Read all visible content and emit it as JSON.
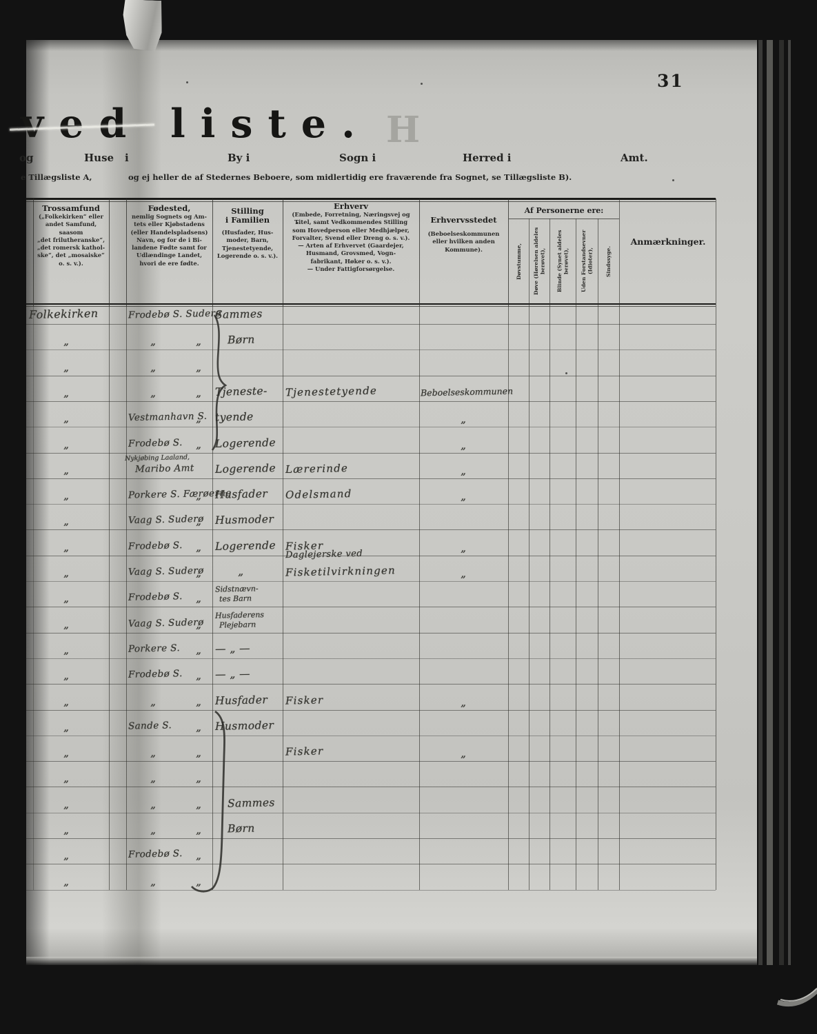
{
  "page": {
    "number": "31",
    "title": "ved liste.",
    "ghost_letter": "H"
  },
  "fields": {
    "og": "og",
    "huse": "Huse",
    "i": "i",
    "by": "By i",
    "sogn": "Sogn i",
    "herred": "Herred i",
    "amt": "Amt."
  },
  "note": {
    "left": "e Tillægsliste A,",
    "right": "og ej heller de af Stedernes Beboere, som midlertidig ere fraværende fra Sognet, se Tillægsliste B)."
  },
  "table": {
    "trossamfund": {
      "title": "Trossamfund",
      "lines": [
        "(„Folkekirken“ eller",
        "andet Samfund, saasom",
        "„det frilutheranske“,",
        "„det romersk kathol-",
        "ske“, det „mosaiske“",
        "o. s. v.)."
      ]
    },
    "foedested": {
      "title": "Fødested,",
      "lines": [
        "nemlig Sognets og Am-",
        "tets eller Kjøbstadens",
        "(eller Handelspladsens)",
        "Navn, og for de i Bi-",
        "landene Fødte samt for",
        "Udlændinge Landet,",
        "hvori de ere fødte."
      ]
    },
    "stilling": {
      "title": "Stilling",
      "title2": "i Familien",
      "lines": [
        "(Husfader, Hus-",
        "moder, Barn,",
        "Tjenestetyende,",
        "Logerende o. s. v.)."
      ]
    },
    "erhverv": {
      "title": "Erhverv",
      "lines": [
        "(Embede, Forretning, Næringsvej og",
        "Titel, samt Vedkommendes Stilling",
        "som Hovedperson eller Medhjælper,",
        "Forvalter, Svend eller Dreng o. s. v.).",
        "— Arten af Erhvervet (Gaardejer,",
        "Husmand, Grovsmed, Vogn-",
        "fabrikant, Høker o. s. v.).",
        "— Under Fattigforsørgelse."
      ]
    },
    "erhvervsstedet": {
      "title": "Erhvervsstedet",
      "lines": [
        "(Beboelseskommunen",
        "eller hvilken anden",
        "Kommune)."
      ]
    },
    "af_personerne": {
      "title": "Af Personerne ere:",
      "subcols": [
        "Døvstumme,",
        "Døve (Hørelsen aldeles berøvet),",
        "Blinde (Synet aldeles berøvet),",
        "Uden Forstandsevner (Idioter),",
        "Sindssyge."
      ]
    },
    "anmaerkninger": {
      "title": "Anmærkninger."
    }
  },
  "rows": [
    {
      "t": "Folkekirken",
      "f": "Frodebø S. Suderø",
      "s": "Sammes"
    },
    {
      "t": "„",
      "f": "„",
      "fd": "„",
      "s": "Børn",
      "s_center": true
    },
    {
      "t": "„",
      "f": "„",
      "fd": "„"
    },
    {
      "t": "„",
      "f": "„",
      "fd": "„",
      "s": "Tjeneste-",
      "e": "Tjenestetyende",
      "es": "Beboelseskommunen"
    },
    {
      "t": "„",
      "f": "Vestmanhavn S.",
      "fd": "„",
      "s": "tyende",
      "es": "„"
    },
    {
      "t": "„",
      "f": "Frodebø S.",
      "fd": "„",
      "s": "Logerende",
      "es": "„"
    },
    {
      "t": "„",
      "fsmall": "Nykjøbing Laaland,",
      "f": "Maribo Amt",
      "s": "Logerende",
      "e": "Lærerinde",
      "es": "„"
    },
    {
      "t": "„",
      "f": "Porkere S. Færøerne",
      "fd": "„",
      "s": "Husfader",
      "e": "Odelsmand",
      "es": "„"
    },
    {
      "t": "„",
      "f": "Vaag S. Suderø",
      "fd": "„",
      "s": "Husmoder"
    },
    {
      "t": "„",
      "f": "Frodebø S.",
      "fd": "„",
      "s": "Logerende",
      "e": "Fisker",
      "e2": "Daglejerske ved",
      "es": "„"
    },
    {
      "t": "„",
      "f": "Vaag S. Suderø",
      "fd": "„",
      "s": "„",
      "e": "Fisketilvirkningen",
      "es": "„"
    },
    {
      "t": "„",
      "f": "Frodebø S.",
      "fd": "„",
      "s2": [
        "Sidstnævn-",
        "tes Barn"
      ]
    },
    {
      "t": "„",
      "f": "Vaag S. Suderø",
      "fd": "„",
      "s2": [
        "Husfaderens",
        "Plejebarn"
      ]
    },
    {
      "t": "„",
      "f": "Porkere S.",
      "fd": "„",
      "s": "— „ —"
    },
    {
      "t": "„",
      "f": "Frodebø S.",
      "fd": "„",
      "s": "— „ —"
    },
    {
      "t": "„",
      "f": "„",
      "fd": "„",
      "s": "Husfader",
      "e": "Fisker",
      "es": "„"
    },
    {
      "t": "„",
      "f": "Sande S.",
      "fd": "„",
      "s": "Husmoder"
    },
    {
      "t": "„",
      "f": "„",
      "fd": "„",
      "e": "Fisker",
      "es": "„"
    },
    {
      "t": "„",
      "f": "„",
      "fd": "„"
    },
    {
      "t": "„",
      "f": "„",
      "fd": "„",
      "s": "Sammes",
      "s_center": true
    },
    {
      "t": "„",
      "f": "„",
      "fd": "„",
      "s": "Børn",
      "s_center": true
    },
    {
      "t": "„",
      "f": "Frodebø S.",
      "fd": "„"
    },
    {
      "t": "„",
      "f": "„",
      "fd": "„"
    }
  ]
}
